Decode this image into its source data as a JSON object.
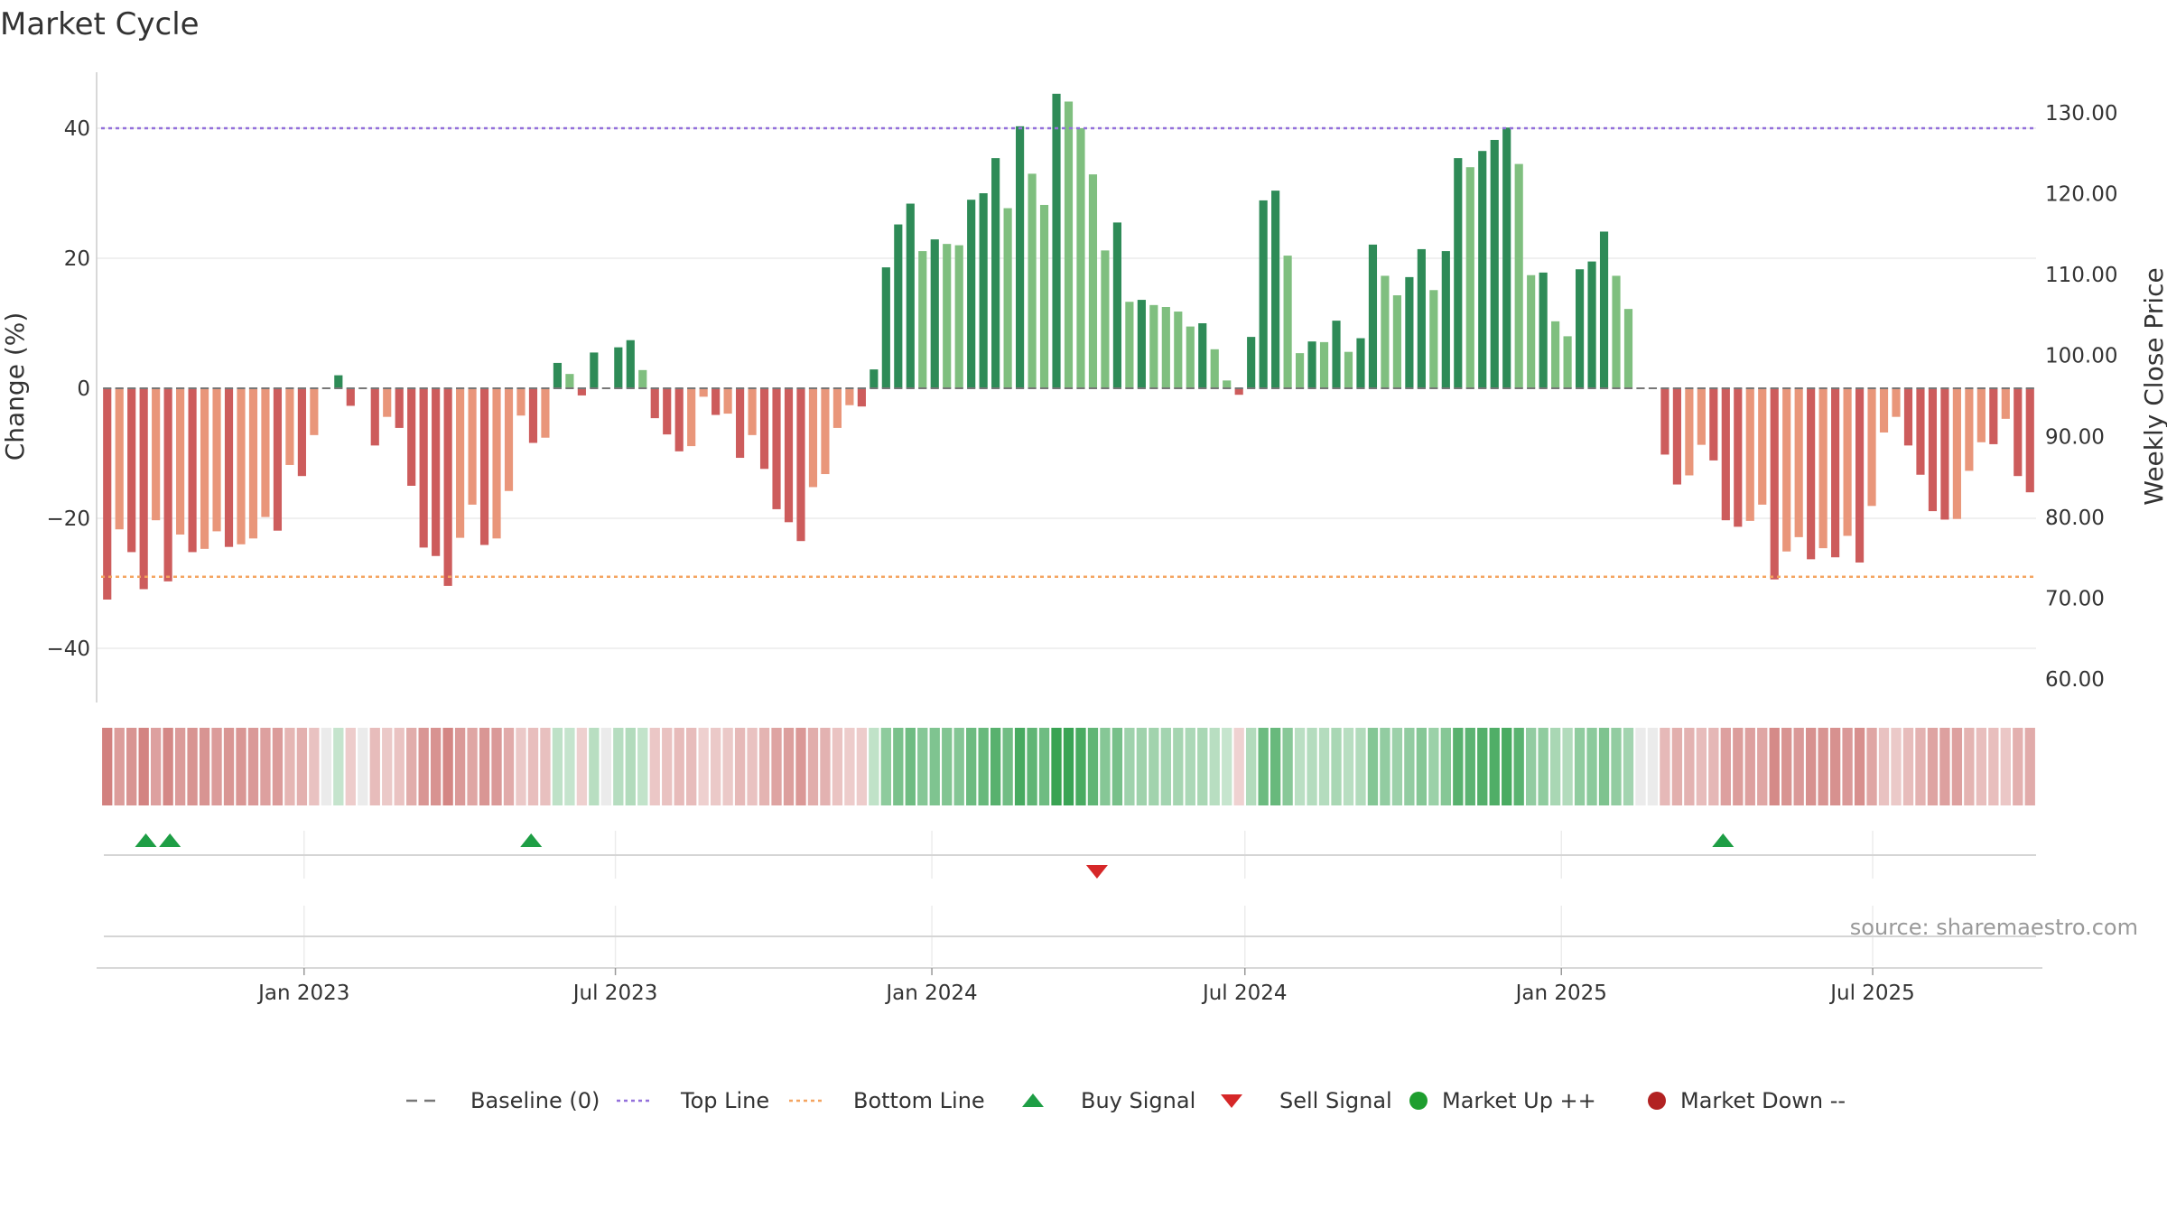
{
  "chart_data": {
    "type": "bar",
    "title": "Market Cycle",
    "ylabel": "Change (%)",
    "y2label": "Weekly Close Price",
    "ylim": [
      -48,
      48
    ],
    "y2lim": [
      57.5,
      132.7
    ],
    "yticks": [
      -40,
      -20,
      0,
      20,
      40
    ],
    "yticks_labels": [
      "−40",
      "−20",
      "0",
      "20",
      "40"
    ],
    "y2ticks": [
      60,
      70,
      80,
      90,
      100,
      110,
      120,
      130
    ],
    "y2ticks_labels": [
      "60.00",
      "70.00",
      "80.00",
      "90.00",
      "100.00",
      "110.00",
      "120.00",
      "130.00"
    ],
    "top_line": 40,
    "bottom_line": -29,
    "x_start": "2022-09-05",
    "x_end": "2025-10-04",
    "xticks": [
      "2023-01-01",
      "2023-07-01",
      "2024-01-01",
      "2024-07-01",
      "2025-01-01",
      "2025-07-01"
    ],
    "xtick_labels": [
      "Jan 2023",
      "Jul 2023",
      "Jan 2024",
      "Jul 2024",
      "Jan 2025",
      "Jul 2025"
    ],
    "grid": true,
    "legend_position": "bottom-center",
    "colors": {
      "up_strong": "#2e8b57",
      "up_weak": "#7fbf7f",
      "down_strong": "#cd5c5c",
      "down_weak": "#e9967a",
      "top_line": "#9370db",
      "bottom_line": "#f4a460",
      "baseline": "#777777",
      "buy": "#1e9e45",
      "sell": "#d62728",
      "market_up": "#1e9e2f",
      "market_down": "#b22222"
    },
    "series": [
      {
        "name": "Change (%)",
        "values": [
          -32.5,
          -21.7,
          -25.2,
          -30.9,
          -20.3,
          -29.7,
          -22.5,
          -25.2,
          -24.7,
          -22,
          -24.4,
          -24,
          -23.1,
          -19.8,
          -21.9,
          -11.8,
          -13.5,
          -7.2,
          0,
          2,
          -2.7,
          0,
          -8.8,
          -4.4,
          -6.1,
          -15,
          -24.5,
          -25.8,
          -30.4,
          -23,
          -17.9,
          -24.1,
          -23.1,
          -15.8,
          -4.2,
          -8.4,
          -7.6,
          3.9,
          2.2,
          -1.1,
          5.5,
          0,
          6.3,
          7.4,
          2.8,
          -4.6,
          -7.1,
          -9.7,
          -8.9,
          -1.3,
          -4.1,
          -3.9,
          -10.7,
          -7.2,
          -12.4,
          -18.6,
          -20.6,
          -23.5,
          -15.2,
          -13.2,
          -6.1,
          -2.6,
          -2.8,
          2.9,
          18.6,
          25.2,
          28.4,
          21.1,
          22.9,
          22.2,
          22,
          29,
          30,
          35.4,
          27.7,
          40.3,
          33,
          28.2,
          45.3,
          44.1,
          40,
          32.9,
          21.2,
          25.5,
          13.3,
          13.6,
          12.8,
          12.5,
          11.8,
          9.5,
          10,
          6,
          1.2,
          -1,
          7.9,
          28.9,
          30.4,
          20.4,
          5.4,
          7.2,
          7.1,
          10.4,
          5.6,
          7.7,
          22.1,
          17.3,
          14.3,
          17.1,
          21.4,
          15.1,
          21.1,
          35.4,
          34,
          36.5,
          38.2,
          40.1,
          34.5,
          17.4,
          17.8,
          10.3,
          8,
          18.3,
          19.5,
          24.1,
          17.3,
          12.2,
          0,
          0,
          -10.2,
          -14.8,
          -13.4,
          -8.7,
          -11.1,
          -20.3,
          -21.3,
          -20.4,
          -17.9,
          -29.4,
          -25.1,
          -22.9,
          -26.3,
          -24.6,
          -26,
          -22.7,
          -26.8,
          -18.1,
          -6.8,
          -4.4,
          -8.8,
          -13.3,
          -18.9,
          -20.2,
          -20.1,
          -12.7,
          -8.3,
          -8.6,
          -4.7,
          -13.5,
          -16
        ]
      }
    ],
    "buy_signals": [
      "2022-10-01",
      "2022-10-15",
      "2023-05-13",
      "2025-04-05"
    ],
    "sell_signals": [
      "2024-04-06"
    ],
    "source": "source: sharemaestro.com",
    "legend": [
      {
        "key": "baseline",
        "label": "Baseline (0)"
      },
      {
        "key": "top",
        "label": "Top Line"
      },
      {
        "key": "bottom",
        "label": "Bottom Line"
      },
      {
        "key": "buy",
        "label": "Buy Signal"
      },
      {
        "key": "sell",
        "label": "Sell Signal"
      },
      {
        "key": "mup",
        "label": "Market Up ++"
      },
      {
        "key": "mdown",
        "label": "Market Down --"
      }
    ]
  }
}
